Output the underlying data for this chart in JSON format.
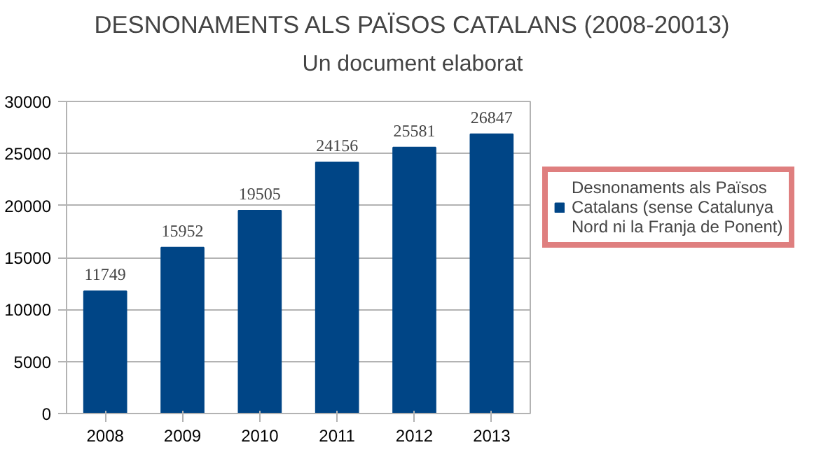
{
  "chart_data": {
    "type": "bar",
    "title": "DESNONAMENTS ALS PAÏSOS CATALANS (2008-20013)",
    "subtitle": "Un document elaborat",
    "categories": [
      "2008",
      "2009",
      "2010",
      "2011",
      "2012",
      "2013"
    ],
    "series": [
      {
        "name": "Desnonaments als Països Catalans (sense Catalunya Nord ni la Franja de Ponent)",
        "color": "#004586",
        "values": [
          11749,
          15952,
          19505,
          24156,
          25581,
          26847
        ]
      }
    ],
    "ylim": [
      0,
      30000
    ],
    "yticks": [
      0,
      5000,
      10000,
      15000,
      20000,
      25000,
      30000
    ],
    "grid": "y",
    "legend": "right",
    "data_labels": true
  }
}
